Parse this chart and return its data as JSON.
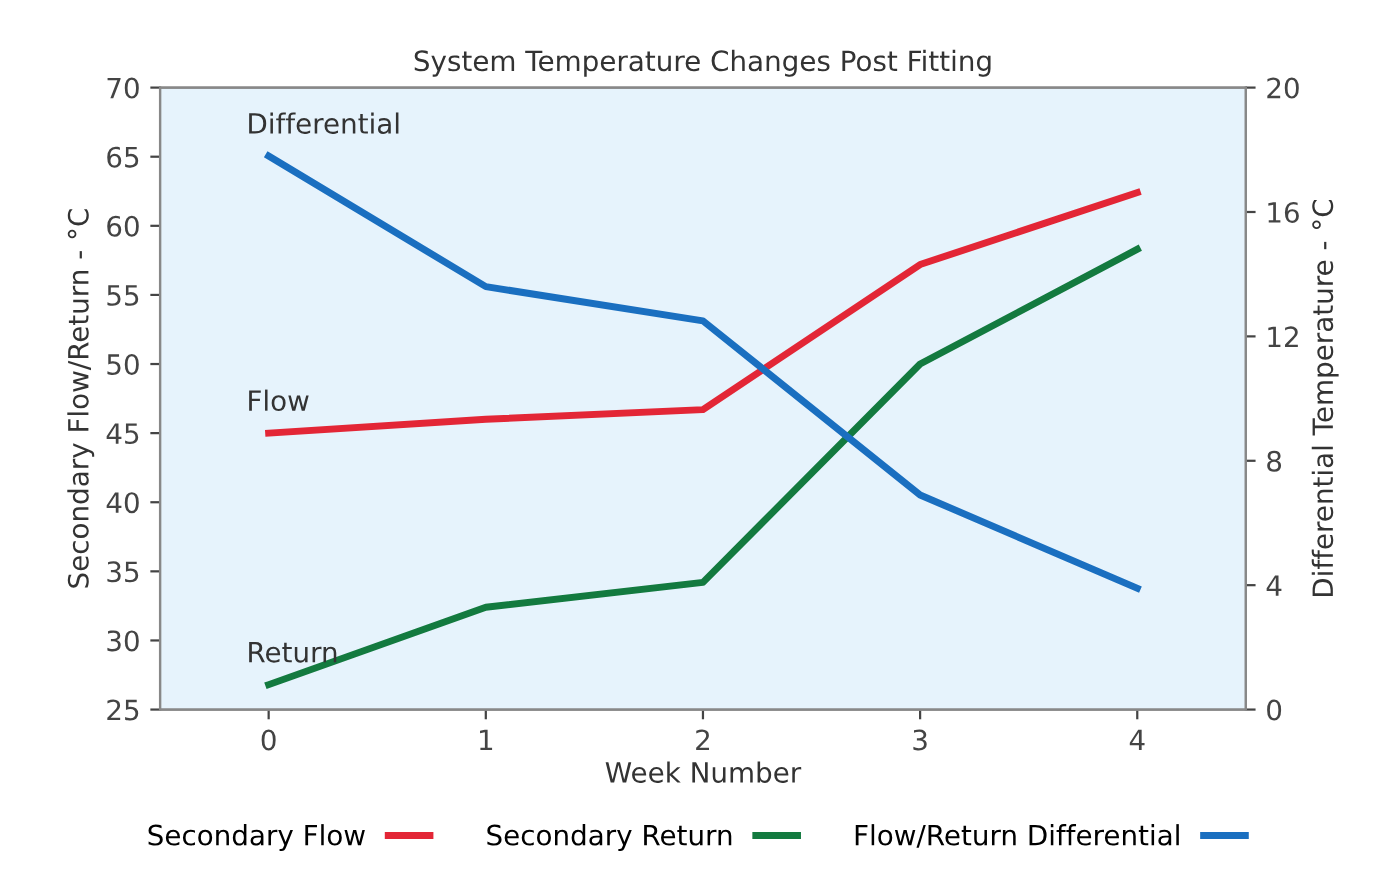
{
  "chart_data": {
    "type": "line",
    "title": "System Temperature Changes Post Fitting",
    "x": [
      0,
      1,
      2,
      3,
      4
    ],
    "series": [
      {
        "name": "Secondary Flow",
        "color": "#e32636",
        "values": [
          45.0,
          46.0,
          46.7,
          57.2,
          62.4
        ]
      },
      {
        "name": "Secondary Return",
        "color": "#137a3f",
        "values": [
          26.8,
          32.4,
          34.2,
          50.0,
          58.3
        ]
      },
      {
        "name": "Flow/Return Differential",
        "color": "#1a6fc0",
        "axis": "y2",
        "values": [
          17.8,
          13.6,
          12.5,
          6.9,
          3.9
        ]
      }
    ],
    "xlabel": "Week Number",
    "ylabel": "Secondary Flow/Return - °C",
    "y2label": "Differential Temperature - °C",
    "xlim": [
      -0.5,
      4.5
    ],
    "xticks": [
      0,
      1,
      2,
      3,
      4
    ],
    "ylim": [
      25,
      70
    ],
    "yticks": [
      25,
      30,
      35,
      40,
      45,
      50,
      55,
      60,
      65,
      70
    ],
    "y2lim": [
      0,
      20
    ],
    "y2ticks": [
      0,
      4,
      8,
      12,
      16,
      20
    ],
    "annotations": [
      "Differential",
      "Flow",
      "Return"
    ],
    "legend": "bottom",
    "grid": false,
    "marker": "none",
    "line_style": "solid"
  }
}
